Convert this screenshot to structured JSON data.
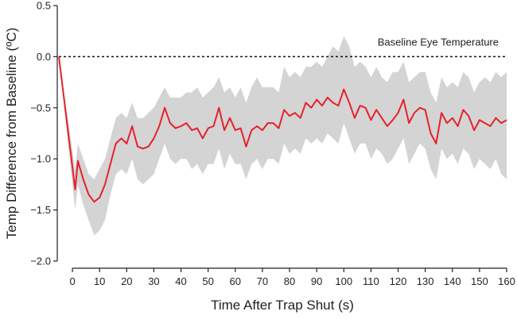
{
  "chart_data": {
    "type": "line",
    "xlabel": "Time After Trap Shut (s)",
    "ylabel": "Temp Difference from Baseline (ºC)",
    "baseline": {
      "value": 0,
      "label": "Baseline Eye Temperature"
    },
    "xlim": [
      -5,
      160
    ],
    "xticks": [
      0,
      10,
      20,
      30,
      40,
      50,
      60,
      70,
      80,
      90,
      100,
      110,
      120,
      130,
      140,
      150,
      160
    ],
    "ylim": [
      -2.0,
      0.5
    ],
    "yticks": [
      0.5,
      {
        "value": 0,
        "label": "0.0"
      },
      {
        "value": -0.5,
        "label": "−0.5"
      },
      {
        "value": -1.0,
        "label": "−1.0"
      },
      {
        "value": -1.5,
        "label": "−1.5"
      },
      {
        "value": -2.0,
        "label": "−2.0"
      }
    ],
    "x": [
      -5,
      1,
      2,
      4,
      6,
      8,
      10,
      12,
      14,
      16,
      18,
      20,
      22,
      24,
      26,
      28,
      30,
      32,
      34,
      36,
      38,
      40,
      42,
      44,
      46,
      48,
      50,
      52,
      54,
      56,
      58,
      60,
      62,
      64,
      66,
      68,
      70,
      72,
      74,
      76,
      78,
      80,
      82,
      84,
      86,
      88,
      90,
      92,
      94,
      96,
      98,
      100,
      102,
      104,
      106,
      108,
      110,
      112,
      114,
      116,
      118,
      120,
      122,
      124,
      126,
      128,
      130,
      132,
      134,
      136,
      138,
      140,
      142,
      144,
      146,
      148,
      150,
      152,
      154,
      156,
      158,
      160
    ],
    "series": [
      {
        "color": "#e8202a",
        "values": [
          0,
          -1.3,
          -1.02,
          -1.2,
          -1.35,
          -1.42,
          -1.38,
          -1.25,
          -1.05,
          -0.85,
          -0.8,
          -0.85,
          -0.68,
          -0.88,
          -0.9,
          -0.88,
          -0.8,
          -0.68,
          -0.5,
          -0.65,
          -0.7,
          -0.68,
          -0.65,
          -0.72,
          -0.7,
          -0.8,
          -0.7,
          -0.68,
          -0.5,
          -0.72,
          -0.6,
          -0.72,
          -0.7,
          -0.88,
          -0.72,
          -0.68,
          -0.72,
          -0.65,
          -0.65,
          -0.7,
          -0.52,
          -0.58,
          -0.55,
          -0.6,
          -0.45,
          -0.5,
          -0.42,
          -0.48,
          -0.4,
          -0.45,
          -0.48,
          -0.32,
          -0.45,
          -0.6,
          -0.48,
          -0.5,
          -0.62,
          -0.52,
          -0.6,
          -0.68,
          -0.62,
          -0.55,
          -0.42,
          -0.65,
          -0.55,
          -0.5,
          -0.52,
          -0.75,
          -0.85,
          -0.55,
          -0.65,
          -0.6,
          -0.68,
          -0.52,
          -0.58,
          -0.72,
          -0.62,
          -0.65,
          -0.68,
          -0.6,
          -0.65,
          -0.62
        ]
      },
      {
        "color": "#d4d4d4",
        "upper": [
          0,
          -1.1,
          -0.85,
          -1.0,
          -1.15,
          -1.2,
          -1.1,
          -1.0,
          -0.8,
          -0.6,
          -0.55,
          -0.6,
          -0.45,
          -0.6,
          -0.6,
          -0.55,
          -0.5,
          -0.4,
          -0.3,
          -0.4,
          -0.4,
          -0.4,
          -0.35,
          -0.35,
          -0.3,
          -0.4,
          -0.35,
          -0.3,
          -0.2,
          -0.35,
          -0.3,
          -0.4,
          -0.3,
          -0.45,
          -0.3,
          -0.2,
          -0.3,
          -0.3,
          -0.3,
          -0.35,
          -0.1,
          -0.2,
          -0.15,
          -0.2,
          -0.1,
          -0.1,
          -0.05,
          -0.1,
          0.0,
          0.1,
          0.05,
          0.2,
          0.1,
          -0.1,
          -0.05,
          -0.1,
          -0.2,
          -0.1,
          -0.2,
          -0.25,
          -0.15,
          -0.15,
          -0.05,
          -0.25,
          -0.2,
          -0.15,
          -0.15,
          -0.35,
          -0.45,
          -0.2,
          -0.3,
          -0.25,
          -0.3,
          -0.15,
          -0.2,
          -0.35,
          -0.25,
          -0.2,
          -0.25,
          -0.15,
          -0.2,
          -0.15
        ],
        "lower": [
          0,
          -1.5,
          -1.25,
          -1.45,
          -1.6,
          -1.75,
          -1.7,
          -1.6,
          -1.35,
          -1.15,
          -1.1,
          -1.15,
          -1.0,
          -1.2,
          -1.25,
          -1.2,
          -1.15,
          -1.0,
          -0.85,
          -1.0,
          -1.05,
          -1.0,
          -1.0,
          -1.1,
          -1.05,
          -1.15,
          -1.05,
          -1.05,
          -0.9,
          -1.1,
          -0.95,
          -1.05,
          -1.05,
          -1.2,
          -1.05,
          -1.0,
          -1.1,
          -1.0,
          -1.0,
          -1.05,
          -0.85,
          -0.95,
          -0.9,
          -0.95,
          -0.8,
          -0.85,
          -0.8,
          -0.85,
          -0.75,
          -0.8,
          -0.85,
          -0.65,
          -0.8,
          -0.95,
          -0.85,
          -0.85,
          -1.0,
          -0.9,
          -0.95,
          -1.05,
          -1.0,
          -0.9,
          -0.8,
          -1.05,
          -0.95,
          -0.85,
          -0.9,
          -1.1,
          -1.2,
          -0.9,
          -1.0,
          -0.95,
          -1.05,
          -0.9,
          -0.95,
          -1.1,
          -1.0,
          -1.05,
          -1.1,
          -1.0,
          -1.15,
          -1.2
        ]
      }
    ]
  }
}
